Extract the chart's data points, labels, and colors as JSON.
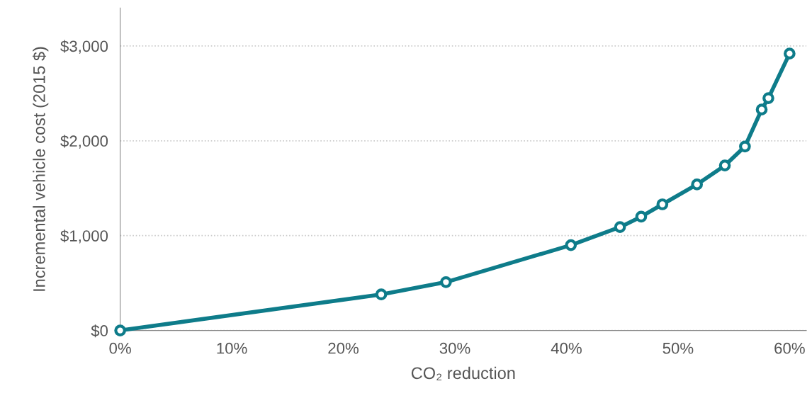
{
  "chart_data": {
    "type": "line",
    "xlabel": "CO₂ reduction",
    "ylabel": "Incremental vehicle cost (2015 $)",
    "series": [
      {
        "color": "#0e7c8a",
        "x": [
          0,
          23.4,
          29.2,
          40.4,
          44.8,
          46.7,
          48.6,
          51.7,
          54.2,
          56.0,
          57.5,
          58.1,
          60.0
        ],
        "values": [
          0,
          380,
          510,
          900,
          1090,
          1200,
          1330,
          1540,
          1740,
          1940,
          2330,
          2450,
          2920
        ]
      }
    ],
    "xlim": [
      0,
      61.5
    ],
    "ylim": [
      0,
      3400
    ],
    "xticks": [
      {
        "value": 0,
        "label": "0%"
      },
      {
        "value": 10,
        "label": "10%"
      },
      {
        "value": 20,
        "label": "20%"
      },
      {
        "value": 30,
        "label": "30%"
      },
      {
        "value": 40,
        "label": "40%"
      },
      {
        "value": 50,
        "label": "50%"
      },
      {
        "value": 60,
        "label": "60%"
      }
    ],
    "yticks": [
      {
        "value": 0,
        "label": "$0"
      },
      {
        "value": 1000,
        "label": "$1,000"
      },
      {
        "value": 2000,
        "label": "$2,000"
      },
      {
        "value": 3000,
        "label": "$3,000"
      }
    ],
    "grid": "y",
    "marker": "circle",
    "line_style": "solid"
  }
}
